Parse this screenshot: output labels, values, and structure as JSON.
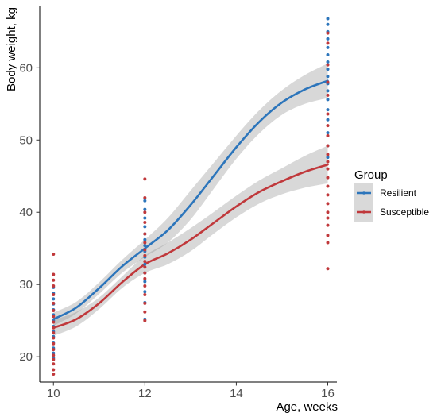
{
  "chart_data": {
    "type": "scatter",
    "xlabel": "Age, weeks",
    "ylabel": "Body weight, kg",
    "xlim": [
      9.7,
      16.2
    ],
    "ylim": [
      16.5,
      68.5
    ],
    "x_ticks": [
      10,
      12,
      14,
      16
    ],
    "y_ticks": [
      20,
      30,
      40,
      50,
      60
    ],
    "grid": false,
    "legend": {
      "title": "Group",
      "position": "right"
    },
    "series": [
      {
        "name": "Resilient",
        "color": "#2c75bb",
        "points": [
          {
            "x": 10,
            "y": 19.8
          },
          {
            "x": 10,
            "y": 20.5
          },
          {
            "x": 10,
            "y": 21.2
          },
          {
            "x": 10,
            "y": 22.0
          },
          {
            "x": 10,
            "y": 22.8
          },
          {
            "x": 10,
            "y": 23.5
          },
          {
            "x": 10,
            "y": 24.2
          },
          {
            "x": 10,
            "y": 25.0
          },
          {
            "x": 10,
            "y": 25.8
          },
          {
            "x": 10,
            "y": 26.5
          },
          {
            "x": 10,
            "y": 27.3
          },
          {
            "x": 10,
            "y": 28.0
          },
          {
            "x": 10,
            "y": 28.8
          },
          {
            "x": 10,
            "y": 29.6
          },
          {
            "x": 12,
            "y": 25.2
          },
          {
            "x": 12,
            "y": 27.5
          },
          {
            "x": 12,
            "y": 29.0
          },
          {
            "x": 12,
            "y": 30.4
          },
          {
            "x": 12,
            "y": 31.6
          },
          {
            "x": 12,
            "y": 32.8
          },
          {
            "x": 12,
            "y": 33.8
          },
          {
            "x": 12,
            "y": 34.6
          },
          {
            "x": 12,
            "y": 35.4
          },
          {
            "x": 12,
            "y": 36.2
          },
          {
            "x": 12,
            "y": 37.0
          },
          {
            "x": 12,
            "y": 38.0
          },
          {
            "x": 12,
            "y": 39.2
          },
          {
            "x": 12,
            "y": 40.4
          },
          {
            "x": 12,
            "y": 41.6
          },
          {
            "x": 16,
            "y": 47.6
          },
          {
            "x": 16,
            "y": 49.2
          },
          {
            "x": 16,
            "y": 51.0
          },
          {
            "x": 16,
            "y": 52.8
          },
          {
            "x": 16,
            "y": 54.2
          },
          {
            "x": 16,
            "y": 55.6
          },
          {
            "x": 16,
            "y": 56.8
          },
          {
            "x": 16,
            "y": 57.8
          },
          {
            "x": 16,
            "y": 58.8
          },
          {
            "x": 16,
            "y": 59.8
          },
          {
            "x": 16,
            "y": 60.8
          },
          {
            "x": 16,
            "y": 61.8
          },
          {
            "x": 16,
            "y": 62.8
          },
          {
            "x": 16,
            "y": 64.0
          },
          {
            "x": 16,
            "y": 65.0
          },
          {
            "x": 16,
            "y": 66.0
          },
          {
            "x": 16,
            "y": 66.8
          }
        ],
        "smooth": {
          "x": [
            10,
            10.5,
            11,
            11.5,
            12,
            12.5,
            13,
            13.5,
            14,
            14.5,
            15,
            15.5,
            16
          ],
          "y": [
            25.2,
            26.8,
            29.5,
            32.5,
            35.0,
            37.5,
            41.0,
            45.0,
            49.0,
            52.5,
            55.2,
            57.0,
            58.2
          ],
          "lower": [
            24.3,
            26.0,
            28.7,
            31.6,
            33.8,
            35.8,
            39.0,
            43.2,
            47.4,
            50.9,
            53.5,
            55.0,
            55.8
          ],
          "upper": [
            26.1,
            27.6,
            30.3,
            33.4,
            36.2,
            39.2,
            43.0,
            46.8,
            50.6,
            54.1,
            56.9,
            59.0,
            60.6
          ]
        }
      },
      {
        "name": "Susceptible",
        "color": "#c0383b",
        "points": [
          {
            "x": 10,
            "y": 17.6
          },
          {
            "x": 10,
            "y": 18.2
          },
          {
            "x": 10,
            "y": 19.0
          },
          {
            "x": 10,
            "y": 19.6
          },
          {
            "x": 10,
            "y": 20.2
          },
          {
            "x": 10,
            "y": 21.0
          },
          {
            "x": 10,
            "y": 21.8
          },
          {
            "x": 10,
            "y": 22.6
          },
          {
            "x": 10,
            "y": 23.3
          },
          {
            "x": 10,
            "y": 24.0
          },
          {
            "x": 10,
            "y": 24.8
          },
          {
            "x": 10,
            "y": 25.6
          },
          {
            "x": 10,
            "y": 26.4
          },
          {
            "x": 10,
            "y": 27.4
          },
          {
            "x": 10,
            "y": 28.6
          },
          {
            "x": 10,
            "y": 29.8
          },
          {
            "x": 10,
            "y": 30.6
          },
          {
            "x": 10,
            "y": 31.4
          },
          {
            "x": 10,
            "y": 34.2
          },
          {
            "x": 12,
            "y": 25.0
          },
          {
            "x": 12,
            "y": 26.2
          },
          {
            "x": 12,
            "y": 27.4
          },
          {
            "x": 12,
            "y": 28.6
          },
          {
            "x": 12,
            "y": 29.8
          },
          {
            "x": 12,
            "y": 30.8
          },
          {
            "x": 12,
            "y": 31.6
          },
          {
            "x": 12,
            "y": 32.4
          },
          {
            "x": 12,
            "y": 33.2
          },
          {
            "x": 12,
            "y": 34.0
          },
          {
            "x": 12,
            "y": 34.8
          },
          {
            "x": 12,
            "y": 35.8
          },
          {
            "x": 12,
            "y": 37.0
          },
          {
            "x": 12,
            "y": 38.6
          },
          {
            "x": 12,
            "y": 40.0
          },
          {
            "x": 12,
            "y": 42.0
          },
          {
            "x": 12,
            "y": 44.6
          },
          {
            "x": 16,
            "y": 32.2
          },
          {
            "x": 16,
            "y": 35.8
          },
          {
            "x": 16,
            "y": 36.8
          },
          {
            "x": 16,
            "y": 38.2
          },
          {
            "x": 16,
            "y": 39.2
          },
          {
            "x": 16,
            "y": 40.0
          },
          {
            "x": 16,
            "y": 41.2
          },
          {
            "x": 16,
            "y": 42.4
          },
          {
            "x": 16,
            "y": 43.6
          },
          {
            "x": 16,
            "y": 44.8
          },
          {
            "x": 16,
            "y": 46.0
          },
          {
            "x": 16,
            "y": 47.0
          },
          {
            "x": 16,
            "y": 48.0
          },
          {
            "x": 16,
            "y": 49.2
          },
          {
            "x": 16,
            "y": 50.6
          },
          {
            "x": 16,
            "y": 52.0
          },
          {
            "x": 16,
            "y": 53.6
          },
          {
            "x": 16,
            "y": 56.2
          },
          {
            "x": 16,
            "y": 58.0
          },
          {
            "x": 16,
            "y": 60.4
          },
          {
            "x": 16,
            "y": 63.4
          },
          {
            "x": 16,
            "y": 64.8
          }
        ],
        "smooth": {
          "x": [
            10,
            10.5,
            11,
            11.5,
            12,
            12.5,
            13,
            13.5,
            14,
            14.5,
            15,
            15.5,
            16
          ],
          "y": [
            24.0,
            25.2,
            27.4,
            30.3,
            32.8,
            34.3,
            36.2,
            38.5,
            40.8,
            42.8,
            44.3,
            45.6,
            46.6
          ],
          "lower": [
            22.9,
            24.2,
            26.6,
            29.5,
            31.6,
            32.8,
            34.6,
            37.0,
            39.3,
            41.2,
            42.5,
            43.4,
            44.0
          ],
          "upper": [
            25.1,
            26.2,
            28.2,
            31.1,
            34.0,
            35.8,
            37.8,
            40.0,
            42.3,
            44.4,
            46.1,
            47.8,
            49.2
          ]
        }
      }
    ]
  }
}
